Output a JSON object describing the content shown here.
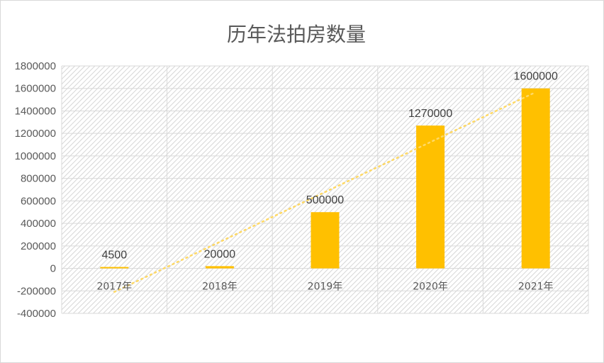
{
  "chart_data": {
    "type": "bar",
    "title": "历年法拍房数量",
    "categories": [
      "2017年",
      "2018年",
      "2019年",
      "2020年",
      "2021年"
    ],
    "series": [
      {
        "values": [
          4500,
          20000,
          500000,
          1270000,
          1600000
        ]
      }
    ],
    "data_labels": [
      "4500",
      "20000",
      "500000",
      "1270000",
      "1600000"
    ],
    "ylim": [
      -400000,
      1800000
    ],
    "ytick_labels": [
      "1800000",
      "1600000",
      "1400000",
      "1200000",
      "1000000",
      "800000",
      "600000",
      "400000",
      "200000",
      "0",
      "-200000",
      "-400000"
    ],
    "trendline": {
      "type": "linear",
      "style": "dotted"
    },
    "grid": true,
    "legend": "none",
    "bar_color": "#FFC000",
    "trendline_color": "#FFD966"
  }
}
